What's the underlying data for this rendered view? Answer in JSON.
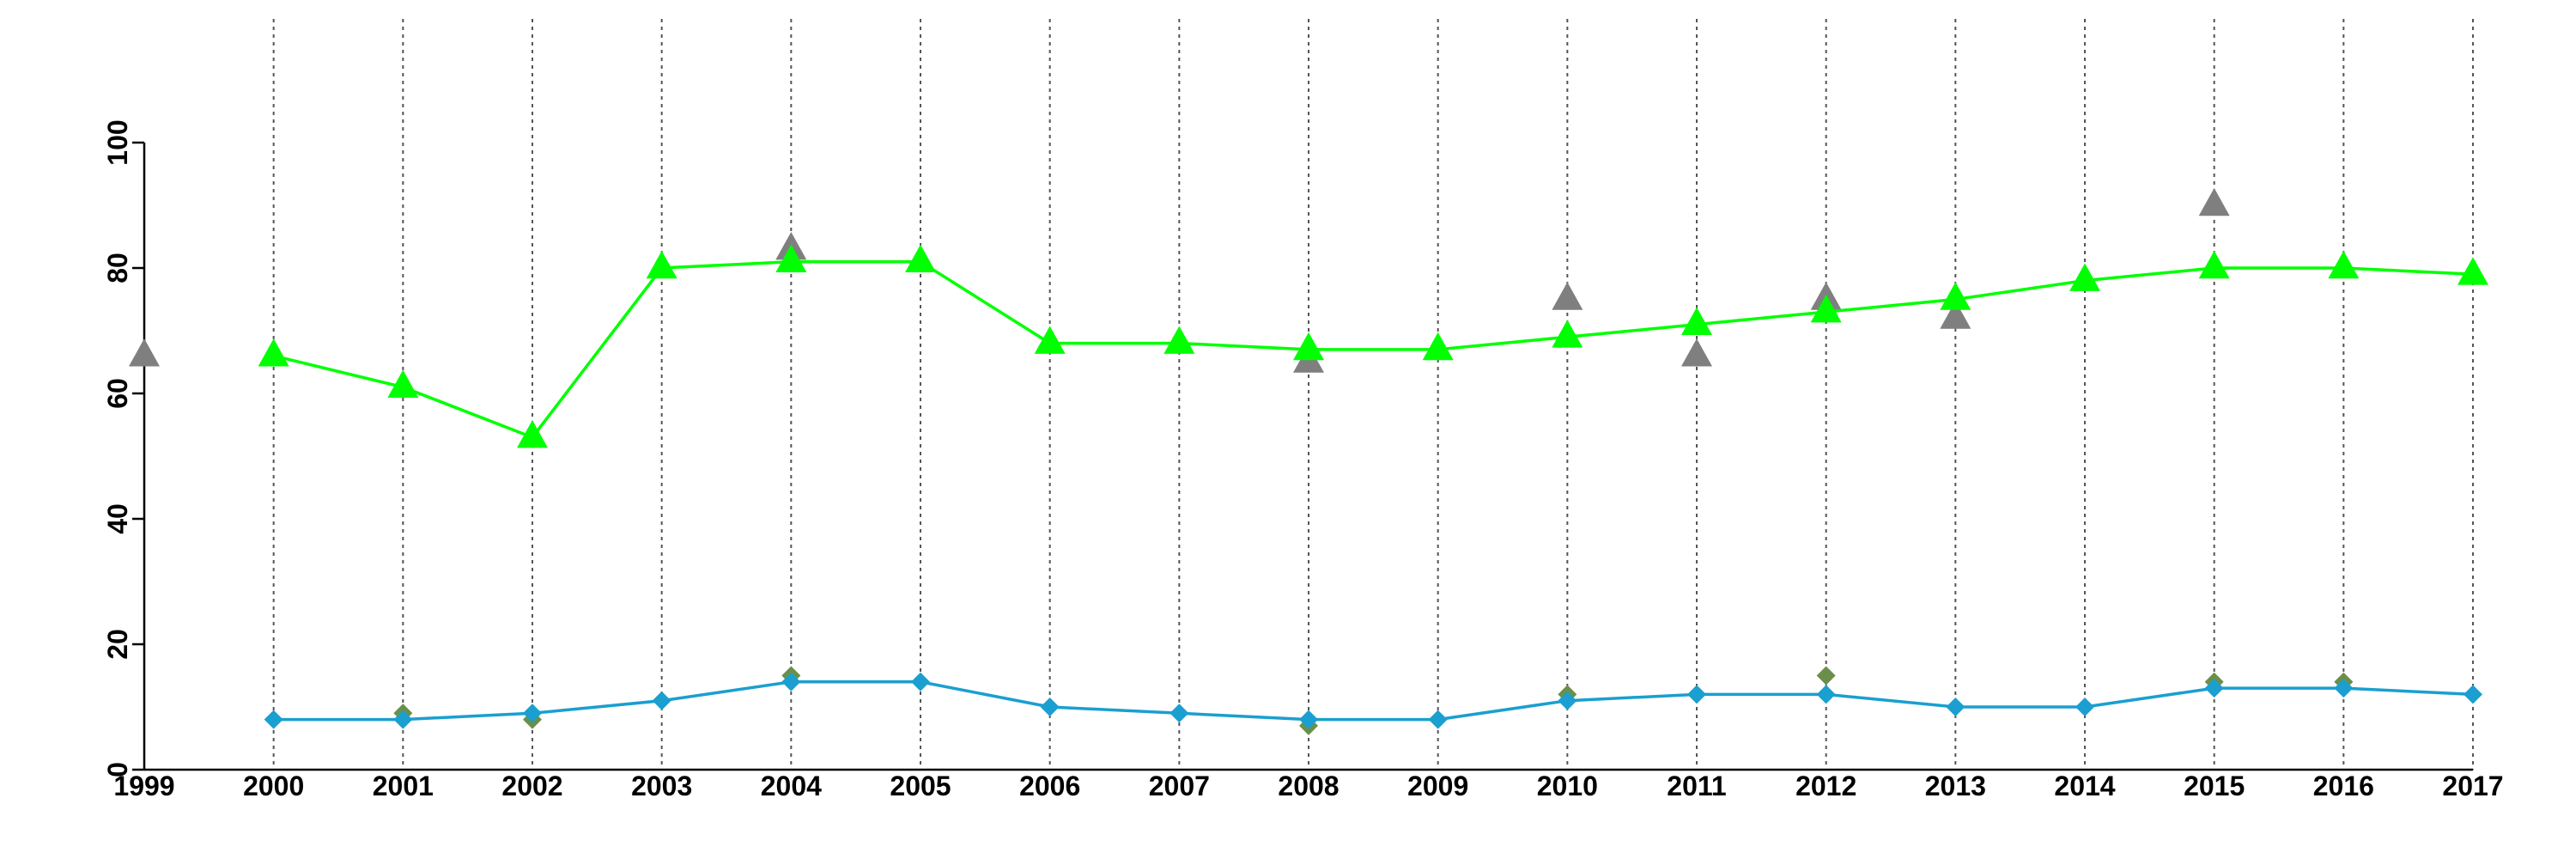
{
  "chart_data": {
    "type": "line",
    "title": "",
    "xlabel": "",
    "ylabel": "",
    "x": [
      "1999",
      "2000",
      "2001",
      "2002",
      "2003",
      "2004",
      "2005",
      "2006",
      "2007",
      "2008",
      "2009",
      "2010",
      "2011",
      "2012",
      "2013",
      "2014",
      "2015",
      "2016",
      "2017"
    ],
    "ylim": [
      0,
      100
    ],
    "yticks": [
      0,
      20,
      40,
      60,
      80,
      100
    ],
    "grid": "vertical dotted at each year",
    "legend": "none",
    "series": [
      {
        "id": "green-line",
        "kind": "line",
        "marker": "triangle",
        "color": "#00ff00",
        "values": [
          null,
          66,
          61,
          53,
          80,
          81,
          81,
          68,
          68,
          67,
          67,
          69,
          71,
          73,
          75,
          78,
          80,
          80,
          79
        ]
      },
      {
        "id": "gray-triangles",
        "kind": "scatter",
        "marker": "triangle",
        "color": "#7f7f7f",
        "values": [
          66,
          null,
          null,
          null,
          null,
          83,
          null,
          null,
          null,
          65,
          null,
          75,
          66,
          75,
          72,
          null,
          90,
          null,
          null
        ]
      },
      {
        "id": "blue-line",
        "kind": "line",
        "marker": "diamond",
        "color": "#1a9fd0",
        "values": [
          null,
          8,
          8,
          9,
          11,
          14,
          14,
          10,
          9,
          8,
          8,
          11,
          12,
          12,
          10,
          10,
          13,
          13,
          12
        ]
      },
      {
        "id": "olive-diamonds",
        "kind": "scatter",
        "marker": "diamond",
        "color": "#6b8f4a",
        "values": [
          null,
          null,
          9,
          8,
          null,
          15,
          null,
          null,
          null,
          7,
          null,
          12,
          null,
          15,
          null,
          null,
          14,
          14,
          null
        ]
      }
    ]
  }
}
